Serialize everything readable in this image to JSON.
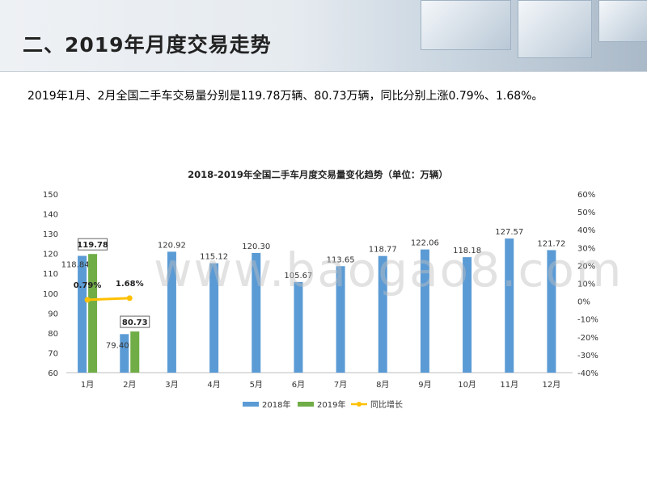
{
  "slide": {
    "title": "二、2019年月度交易走势",
    "summary": "2019年1月、2月全国二手车交易量分别是119.78万辆、80.73万辆，同比分别上涨0.79%、1.68%。",
    "watermark": "www.baogao8.com"
  },
  "chart_data": {
    "type": "bar",
    "title": "2018-2019年全国二手车月度交易量变化趋势（单位：万辆）",
    "categories": [
      "1月",
      "2月",
      "3月",
      "4月",
      "5月",
      "6月",
      "7月",
      "8月",
      "9月",
      "10月",
      "11月",
      "12月"
    ],
    "series": [
      {
        "name": "2018年",
        "type": "bar",
        "color": "#5b9bd5",
        "values": [
          118.84,
          79.4,
          120.92,
          115.12,
          120.3,
          105.67,
          113.65,
          118.77,
          122.06,
          118.18,
          127.57,
          121.72
        ]
      },
      {
        "name": "2019年",
        "type": "bar",
        "color": "#70ad47",
        "values": [
          119.78,
          80.73,
          null,
          null,
          null,
          null,
          null,
          null,
          null,
          null,
          null,
          null
        ]
      },
      {
        "name": "同比增长",
        "type": "line",
        "axis": "right",
        "color": "#ffc000",
        "values": [
          0.79,
          1.68,
          null,
          null,
          null,
          null,
          null,
          null,
          null,
          null,
          null,
          null
        ]
      }
    ],
    "data_labels": {
      "2018年": [
        "118.84",
        "79.40",
        "120.92",
        "115.12",
        "120.30",
        "105.67",
        "113.65",
        "118.77",
        "122.06",
        "118.18",
        "127.57",
        "121.72"
      ],
      "2019年": [
        "119.78",
        "80.73"
      ],
      "同比增长": [
        "0.79%",
        "1.68%"
      ]
    },
    "ylim": [
      60,
      150
    ],
    "yticks": [
      "60",
      "70",
      "80",
      "90",
      "100",
      "110",
      "120",
      "130",
      "140",
      "150"
    ],
    "y2lim": [
      -40,
      60
    ],
    "y2ticks": [
      "-40%",
      "-30%",
      "-20%",
      "-10%",
      "0%",
      "10%",
      "20%",
      "30%",
      "40%",
      "50%",
      "60%"
    ],
    "legend_position": "bottom"
  }
}
